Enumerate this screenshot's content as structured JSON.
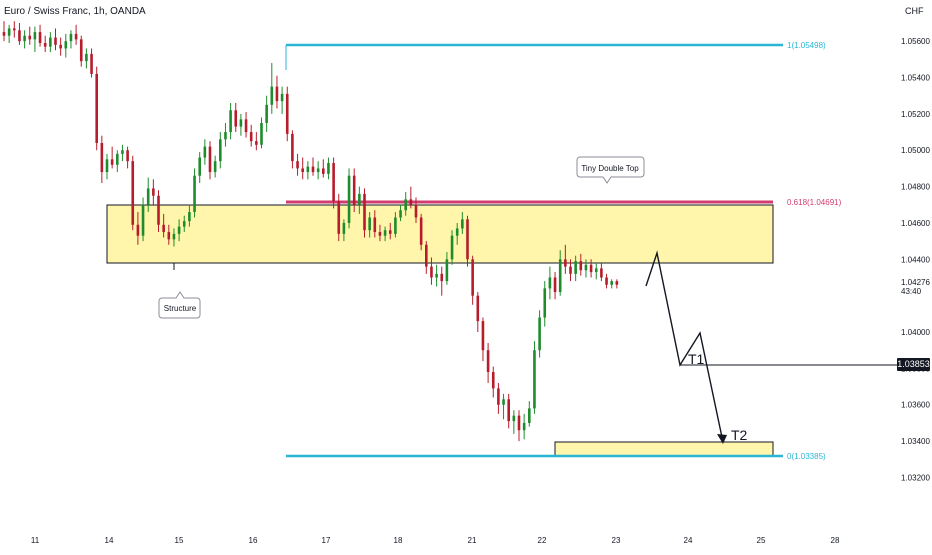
{
  "header": {
    "symbol_title": "Euro / Swiss Franc, 1h, OANDA",
    "currency": "CHF"
  },
  "price_axis": {
    "ticks": [
      "1.05600",
      "1.05400",
      "1.05200",
      "1.05000",
      "1.04800",
      "1.04600",
      "1.04400",
      "1.04000",
      "1.03800",
      "1.03600",
      "1.03400",
      "1.03200"
    ],
    "last_price": "1.04276",
    "countdown": "43:40",
    "marker_label": "1.03853"
  },
  "time_axis": {
    "ticks": [
      "11",
      "14",
      "15",
      "16",
      "17",
      "18",
      "21",
      "22",
      "23",
      "24",
      "25",
      "28"
    ]
  },
  "annotations": {
    "fib_1": "1(1.05498)",
    "fib_0618": "0.618(1.04691)",
    "fib_0": "0(1.03385)",
    "callout_top": "Tiny Double Top",
    "callout_bottom": "Structure",
    "target_1": "T1",
    "target_2": "T2"
  },
  "colors": {
    "bull": "#1e8c2c",
    "bear": "#b71c2c",
    "fib_line": "#29b6d6",
    "resistance_line": "#d03c6e",
    "zone_fill": "#fff59d",
    "zone_border": "#131722",
    "text": "#131722"
  },
  "chart_data": {
    "type": "candlestick",
    "title": "Euro / Swiss Franc, 1h, OANDA",
    "ylim": [
      1.0312,
      1.057
    ],
    "resistance_zone": [
      1.0439,
      1.0467
    ],
    "target_zone": [
      1.0338,
      1.0345
    ],
    "fib_levels": [
      {
        "label": "1",
        "value": 1.05498
      },
      {
        "label": "0.618",
        "value": 1.04691
      },
      {
        "label": "0",
        "value": 1.03385
      }
    ],
    "projection": [
      {
        "point": "start",
        "price": 1.0424
      },
      {
        "point": "peak",
        "price": 1.0445
      },
      {
        "point": "T1",
        "price": 1.0386
      },
      {
        "point": "retest",
        "price": 1.0401
      },
      {
        "point": "T2",
        "price": 1.0345
      }
    ],
    "ohlc": [
      [
        1.0565,
        1.0571,
        1.056,
        1.0563
      ],
      [
        1.0563,
        1.0569,
        1.0559,
        1.0567
      ],
      [
        1.0567,
        1.0571,
        1.0562,
        1.0566
      ],
      [
        1.0566,
        1.057,
        1.0558,
        1.056
      ],
      [
        1.056,
        1.0566,
        1.0556,
        1.0563
      ],
      [
        1.0563,
        1.0568,
        1.0558,
        1.0561
      ],
      [
        1.0561,
        1.0568,
        1.0554,
        1.0565
      ],
      [
        1.0565,
        1.0569,
        1.0557,
        1.0559
      ],
      [
        1.0559,
        1.0563,
        1.0554,
        1.0557
      ],
      [
        1.0557,
        1.0565,
        1.0554,
        1.0562
      ],
      [
        1.0562,
        1.0567,
        1.0555,
        1.0558
      ],
      [
        1.0558,
        1.0562,
        1.0552,
        1.0556
      ],
      [
        1.0556,
        1.0564,
        1.0551,
        1.056
      ],
      [
        1.056,
        1.0566,
        1.0556,
        1.0564
      ],
      [
        1.0564,
        1.0569,
        1.0558,
        1.0561
      ],
      [
        1.0561,
        1.0563,
        1.0546,
        1.0549
      ],
      [
        1.0549,
        1.0556,
        1.0545,
        1.0553
      ],
      [
        1.0553,
        1.0556,
        1.054,
        1.0542
      ],
      [
        1.0542,
        1.0546,
        1.05,
        1.0504
      ],
      [
        1.0504,
        1.0508,
        1.0482,
        1.0488
      ],
      [
        1.0488,
        1.0498,
        1.0484,
        1.0495
      ],
      [
        1.0495,
        1.0502,
        1.049,
        1.0492
      ],
      [
        1.0492,
        1.05,
        1.0488,
        1.0498
      ],
      [
        1.0498,
        1.0503,
        1.0494,
        1.05
      ],
      [
        1.05,
        1.0502,
        1.049,
        1.0494
      ],
      [
        1.0494,
        1.0497,
        1.0456,
        1.0459
      ],
      [
        1.0459,
        1.0466,
        1.0448,
        1.0453
      ],
      [
        1.0453,
        1.0474,
        1.045,
        1.047
      ],
      [
        1.047,
        1.0485,
        1.0466,
        1.0479
      ],
      [
        1.0479,
        1.0484,
        1.047,
        1.0475
      ],
      [
        1.0475,
        1.0478,
        1.0455,
        1.0459
      ],
      [
        1.0459,
        1.0465,
        1.0452,
        1.0455
      ],
      [
        1.0455,
        1.0459,
        1.0448,
        1.0451
      ],
      [
        1.0451,
        1.0457,
        1.0447,
        1.0454
      ],
      [
        1.0454,
        1.0462,
        1.045,
        1.0458
      ],
      [
        1.0458,
        1.0464,
        1.0455,
        1.0461
      ],
      [
        1.0461,
        1.047,
        1.0458,
        1.0466
      ],
      [
        1.0466,
        1.049,
        1.0463,
        1.0486
      ],
      [
        1.0486,
        1.0499,
        1.0482,
        1.0496
      ],
      [
        1.0496,
        1.0506,
        1.0492,
        1.0502
      ],
      [
        1.0502,
        1.0505,
        1.0484,
        1.0488
      ],
      [
        1.0488,
        1.0497,
        1.0485,
        1.0494
      ],
      [
        1.0494,
        1.051,
        1.049,
        1.0506
      ],
      [
        1.0506,
        1.0515,
        1.0502,
        1.051
      ],
      [
        1.051,
        1.0526,
        1.0506,
        1.0522
      ],
      [
        1.0522,
        1.0526,
        1.051,
        1.0513
      ],
      [
        1.0513,
        1.052,
        1.0508,
        1.0517
      ],
      [
        1.0517,
        1.0521,
        1.0507,
        1.051
      ],
      [
        1.051,
        1.0514,
        1.0502,
        1.0505
      ],
      [
        1.0505,
        1.051,
        1.05,
        1.0503
      ],
      [
        1.0503,
        1.0518,
        1.0501,
        1.0515
      ],
      [
        1.0515,
        1.053,
        1.051,
        1.0525
      ],
      [
        1.0525,
        1.0548,
        1.052,
        1.0535
      ],
      [
        1.0535,
        1.0541,
        1.0523,
        1.0527
      ],
      [
        1.0527,
        1.0535,
        1.052,
        1.0531
      ],
      [
        1.0531,
        1.0535,
        1.0505,
        1.0509
      ],
      [
        1.0509,
        1.0511,
        1.049,
        1.0494
      ],
      [
        1.0494,
        1.0498,
        1.0486,
        1.049
      ],
      [
        1.049,
        1.0496,
        1.0484,
        1.0488
      ],
      [
        1.0488,
        1.0494,
        1.0484,
        1.0491
      ],
      [
        1.0491,
        1.0496,
        1.0486,
        1.0488
      ],
      [
        1.0488,
        1.0494,
        1.0484,
        1.049
      ],
      [
        1.049,
        1.0495,
        1.0485,
        1.0487
      ],
      [
        1.0487,
        1.0496,
        1.0484,
        1.0493
      ],
      [
        1.0493,
        1.0496,
        1.0468,
        1.0472
      ],
      [
        1.0472,
        1.0476,
        1.045,
        1.0454
      ],
      [
        1.0454,
        1.0462,
        1.045,
        1.046
      ],
      [
        1.046,
        1.049,
        1.0457,
        1.0486
      ],
      [
        1.0486,
        1.049,
        1.0466,
        1.047
      ],
      [
        1.047,
        1.048,
        1.0465,
        1.0476
      ],
      [
        1.0476,
        1.0479,
        1.0452,
        1.0456
      ],
      [
        1.0456,
        1.0466,
        1.0452,
        1.0463
      ],
      [
        1.0463,
        1.0467,
        1.0452,
        1.0455
      ],
      [
        1.0455,
        1.0459,
        1.045,
        1.0453
      ],
      [
        1.0453,
        1.0458,
        1.045,
        1.0456
      ],
      [
        1.0456,
        1.046,
        1.0451,
        1.0454
      ],
      [
        1.0454,
        1.0466,
        1.0452,
        1.0463
      ],
      [
        1.0463,
        1.047,
        1.0461,
        1.0467
      ],
      [
        1.0467,
        1.0477,
        1.0464,
        1.0473
      ],
      [
        1.0473,
        1.048,
        1.0468,
        1.047
      ],
      [
        1.047,
        1.0474,
        1.046,
        1.0463
      ],
      [
        1.0463,
        1.0465,
        1.0445,
        1.0448
      ],
      [
        1.0448,
        1.045,
        1.0432,
        1.0436
      ],
      [
        1.0436,
        1.0441,
        1.0426,
        1.043
      ],
      [
        1.043,
        1.0437,
        1.0425,
        1.0432
      ],
      [
        1.0432,
        1.0436,
        1.042,
        1.0428
      ],
      [
        1.0428,
        1.0444,
        1.0426,
        1.044
      ],
      [
        1.044,
        1.0456,
        1.0437,
        1.0453
      ],
      [
        1.0453,
        1.046,
        1.0448,
        1.0457
      ],
      [
        1.0457,
        1.0466,
        1.0454,
        1.0462
      ],
      [
        1.0462,
        1.0464,
        1.0436,
        1.044
      ],
      [
        1.044,
        1.0442,
        1.0415,
        1.042
      ],
      [
        1.042,
        1.0422,
        1.04,
        1.0406
      ],
      [
        1.0406,
        1.0408,
        1.0384,
        1.039
      ],
      [
        1.039,
        1.0394,
        1.0372,
        1.0378
      ],
      [
        1.0378,
        1.0381,
        1.0364,
        1.0369
      ],
      [
        1.0369,
        1.0372,
        1.0355,
        1.036
      ],
      [
        1.036,
        1.0366,
        1.0352,
        1.0363
      ],
      [
        1.0363,
        1.0366,
        1.0347,
        1.0351
      ],
      [
        1.0351,
        1.0357,
        1.0344,
        1.0354
      ],
      [
        1.0354,
        1.0357,
        1.034,
        1.0346
      ],
      [
        1.0346,
        1.0355,
        1.0341,
        1.035
      ],
      [
        1.035,
        1.0362,
        1.0348,
        1.0358
      ],
      [
        1.0358,
        1.0395,
        1.0355,
        1.039
      ],
      [
        1.039,
        1.0412,
        1.0386,
        1.0408
      ],
      [
        1.0408,
        1.0428,
        1.0403,
        1.0424
      ],
      [
        1.0424,
        1.0436,
        1.0418,
        1.043
      ],
      [
        1.043,
        1.0433,
        1.0418,
        1.0422
      ],
      [
        1.0422,
        1.0445,
        1.042,
        1.044
      ],
      [
        1.044,
        1.0448,
        1.0432,
        1.0436
      ],
      [
        1.0436,
        1.044,
        1.0428,
        1.0432
      ],
      [
        1.0432,
        1.0442,
        1.0428,
        1.0439
      ],
      [
        1.0439,
        1.0443,
        1.0431,
        1.0434
      ],
      [
        1.0434,
        1.044,
        1.043,
        1.0437
      ],
      [
        1.0437,
        1.044,
        1.043,
        1.0433
      ],
      [
        1.0433,
        1.0438,
        1.0429,
        1.0435
      ],
      [
        1.0435,
        1.0438,
        1.0428,
        1.043
      ],
      [
        1.043,
        1.0432,
        1.0424,
        1.0426
      ],
      [
        1.0426,
        1.0429,
        1.0424,
        1.0428
      ],
      [
        1.0428,
        1.0429,
        1.0424,
        1.0426
      ]
    ]
  }
}
